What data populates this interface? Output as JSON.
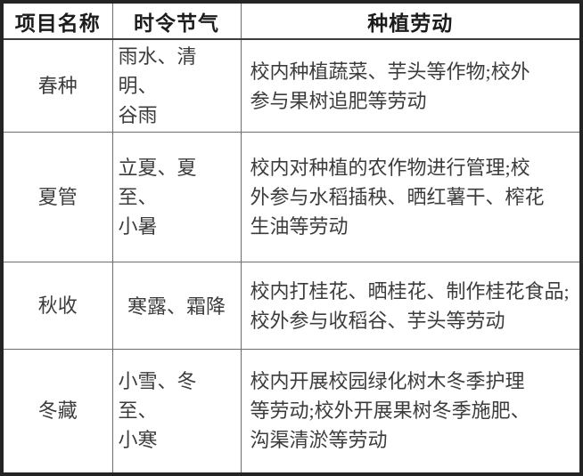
{
  "table": {
    "headers": {
      "project": "项目名称",
      "solar_terms": "时令节气",
      "labor": "种植劳动"
    },
    "rows": [
      {
        "project": "春种",
        "solar_terms": "雨水、清明、\n谷雨",
        "labor": "校内种植蔬菜、芋头等作物;校外\n参与果树追肥等劳动"
      },
      {
        "project": "夏管",
        "solar_terms": "立夏、夏至、\n小暑",
        "labor": "校内对种植的农作物进行管理;校\n外参与水稻插秧、晒红薯干、榨花\n生油等劳动"
      },
      {
        "project": "秋收",
        "solar_terms": "寒露、霜降",
        "labor": "校内打桂花、晒桂花、制作桂花食品;\n校外参与收稻谷、芋头等劳动"
      },
      {
        "project": "冬藏",
        "solar_terms": "小雪、冬至、\n小寒",
        "labor": "校内开展校园绿化树木冬季护理\n等劳动;校外开展果树冬季施肥、\n沟渠清淤等劳动"
      }
    ],
    "colors": {
      "outer_border": "#242424",
      "inner_border": "#6e6e6e",
      "header_separator": "#3c3c3c",
      "header_text": "#1c1c1c",
      "body_text": "#3c3c3c",
      "background": "#ffffff"
    }
  }
}
